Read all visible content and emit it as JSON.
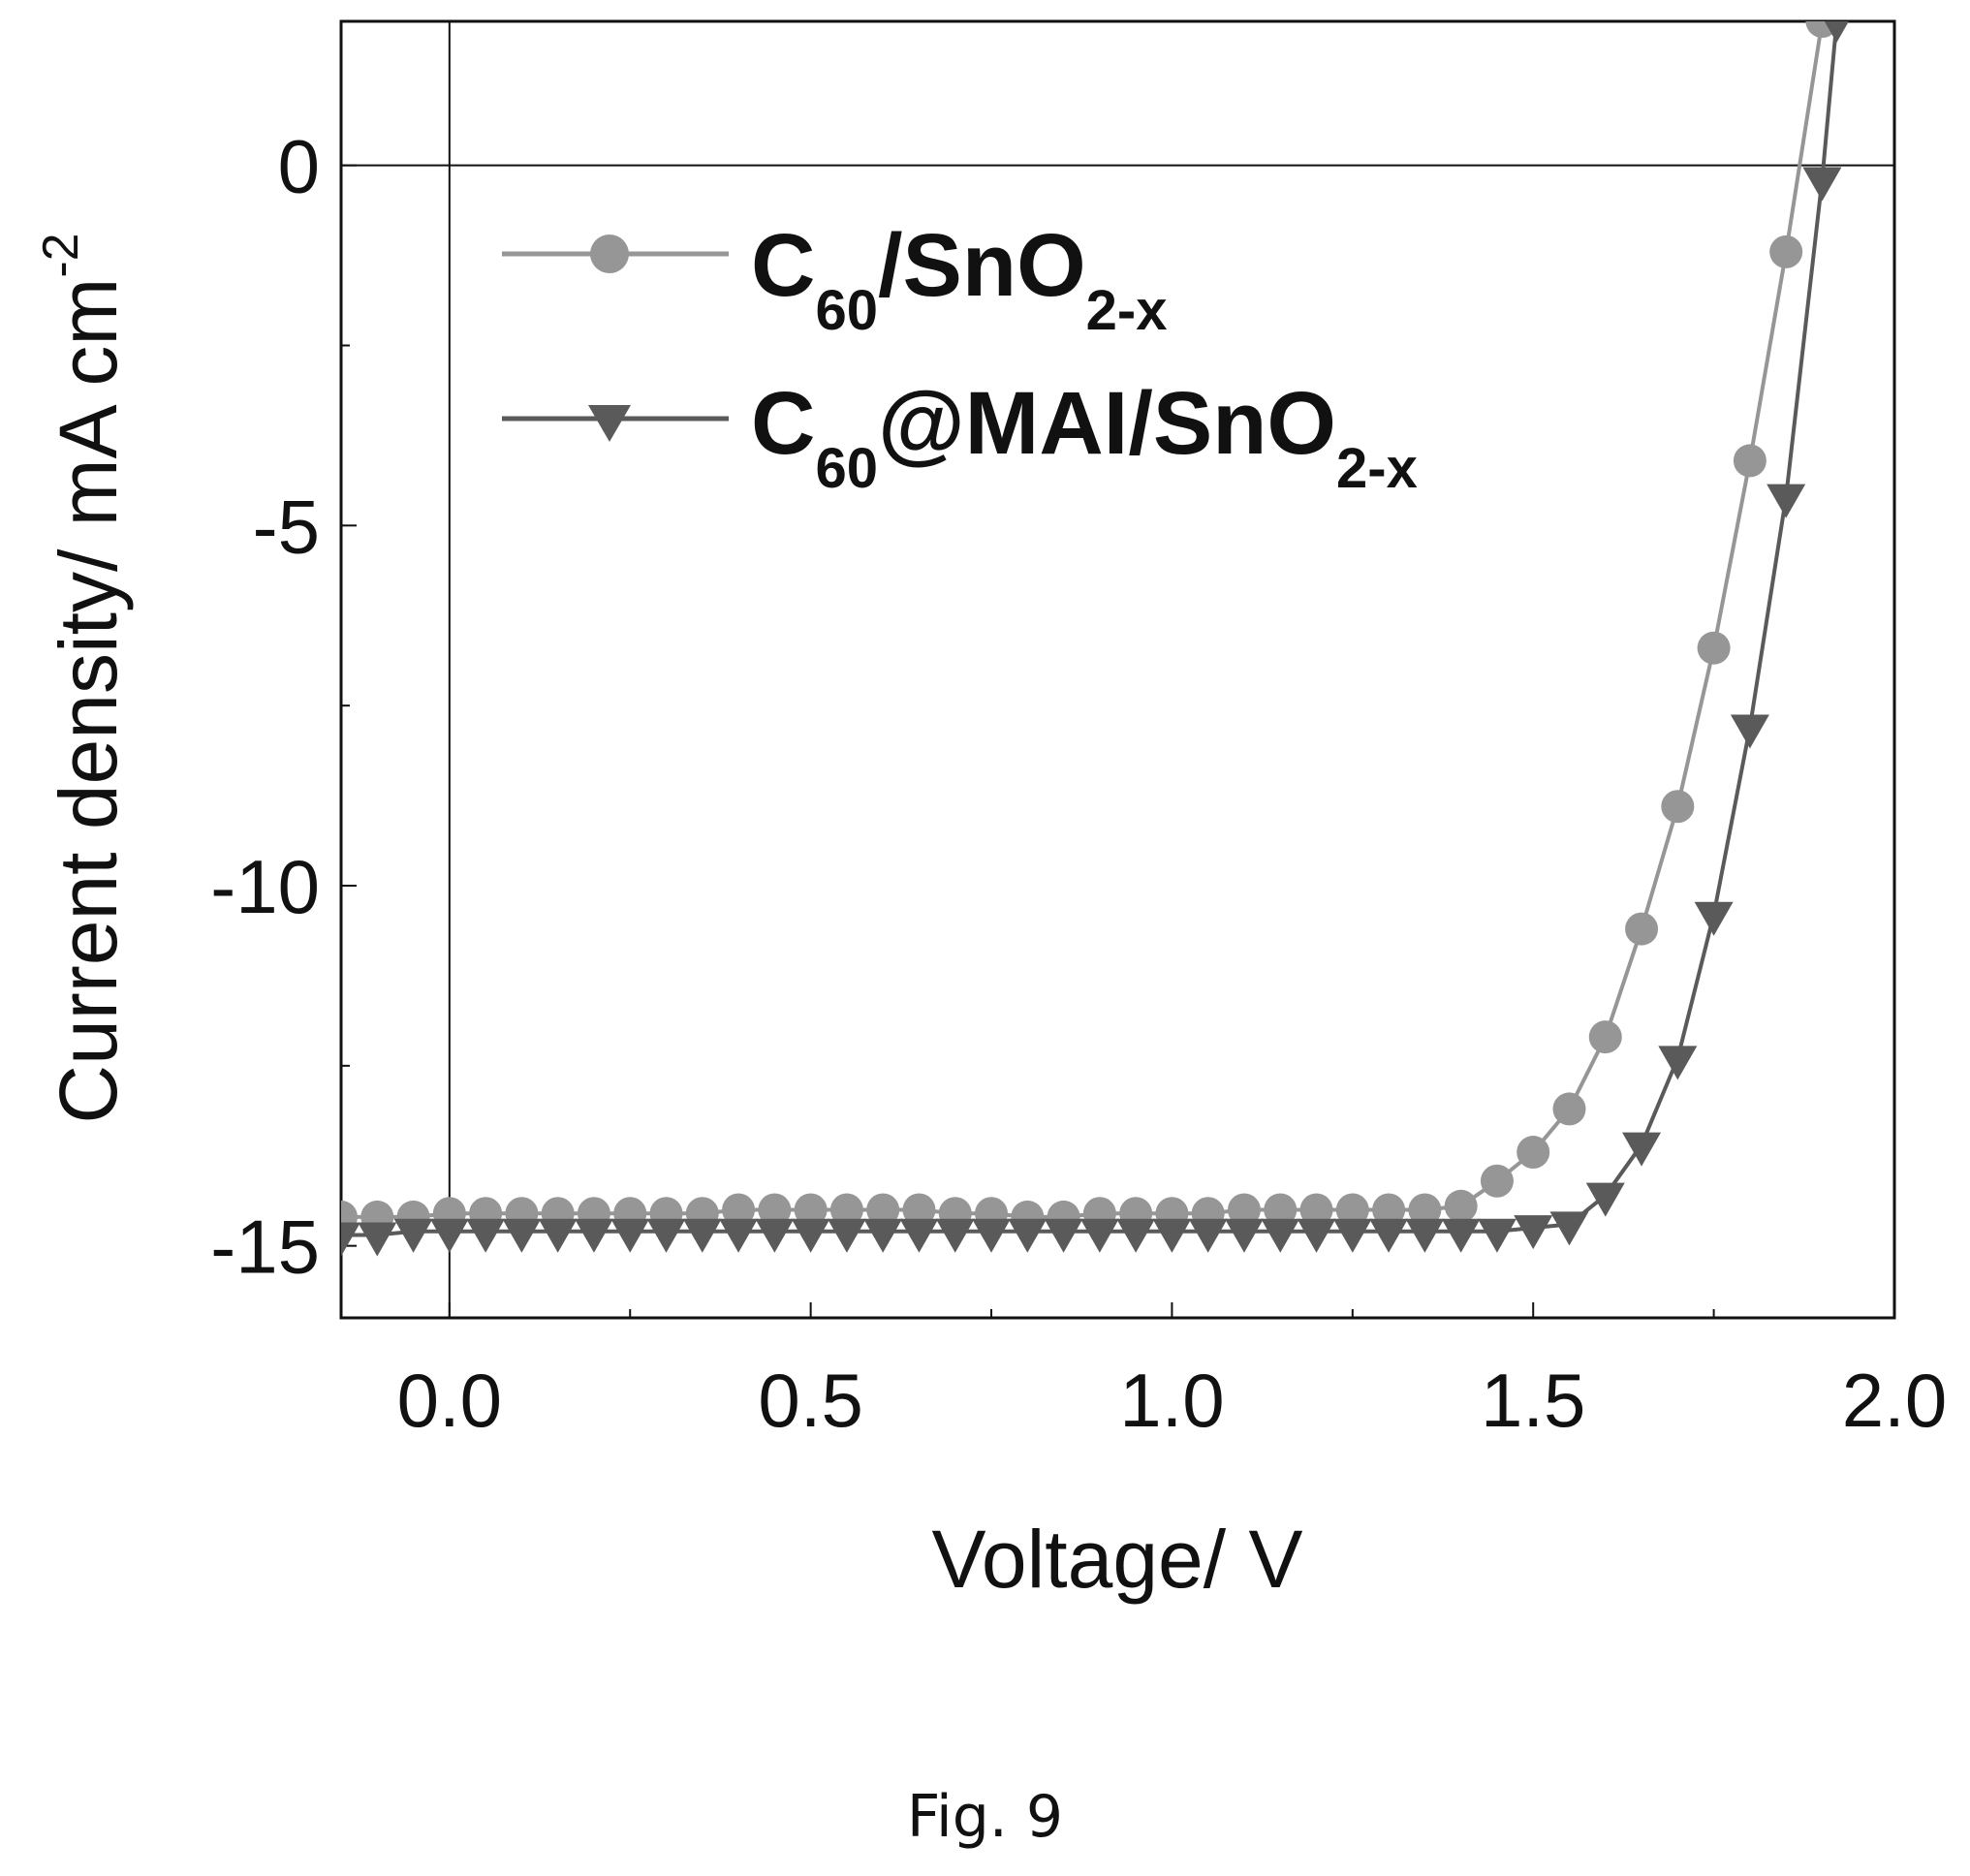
{
  "figure_caption": "Fig. 9",
  "chart_data": {
    "type": "line",
    "xlabel": "Voltage/ V",
    "ylabel_main": "Current density/ mA cm",
    "ylabel_sup": "-2",
    "xlim": [
      -0.15,
      2.0
    ],
    "ylim": [
      -16,
      2
    ],
    "x_ticks": [
      0.0,
      0.5,
      1.0,
      1.5,
      2.0
    ],
    "x_tick_labels": [
      "0.0",
      "0.5",
      "1.0",
      "1.5",
      "2.0"
    ],
    "y_ticks": [
      0,
      -5,
      -10,
      -15
    ],
    "y_tick_labels": [
      "0",
      "-5",
      "-10",
      "-15"
    ],
    "grid": false,
    "legend_position": "top-left",
    "series": [
      {
        "name_main": "C",
        "name_sub1": "60",
        "name_mid": "/SnO",
        "name_sub2": "2-x",
        "marker": "circle",
        "color": "#969696",
        "x": [
          -0.15,
          -0.1,
          -0.05,
          0.0,
          0.05,
          0.1,
          0.15,
          0.2,
          0.25,
          0.3,
          0.35,
          0.4,
          0.45,
          0.5,
          0.55,
          0.6,
          0.65,
          0.7,
          0.75,
          0.8,
          0.85,
          0.9,
          0.95,
          1.0,
          1.05,
          1.1,
          1.15,
          1.2,
          1.25,
          1.3,
          1.35,
          1.4,
          1.45,
          1.5,
          1.55,
          1.6,
          1.65,
          1.7,
          1.75,
          1.8,
          1.85,
          1.9
        ],
        "y": [
          -14.6,
          -14.6,
          -14.6,
          -14.55,
          -14.55,
          -14.55,
          -14.55,
          -14.55,
          -14.55,
          -14.55,
          -14.55,
          -14.5,
          -14.5,
          -14.5,
          -14.5,
          -14.5,
          -14.5,
          -14.55,
          -14.55,
          -14.6,
          -14.6,
          -14.55,
          -14.55,
          -14.55,
          -14.55,
          -14.5,
          -14.5,
          -14.5,
          -14.5,
          -14.5,
          -14.5,
          -14.45,
          -14.1,
          -13.7,
          -13.1,
          -12.1,
          -10.6,
          -8.9,
          -6.7,
          -4.1,
          -1.2,
          2.0
        ]
      },
      {
        "name_main": "C",
        "name_sub1": "60",
        "name_mid": "@MAI/SnO",
        "name_sub2": "2-x",
        "marker": "triangle-down",
        "color": "#5a5a5a",
        "x": [
          -0.15,
          -0.1,
          -0.05,
          0.0,
          0.05,
          0.1,
          0.15,
          0.2,
          0.25,
          0.3,
          0.35,
          0.4,
          0.45,
          0.5,
          0.55,
          0.6,
          0.65,
          0.7,
          0.75,
          0.8,
          0.85,
          0.9,
          0.95,
          1.0,
          1.05,
          1.1,
          1.15,
          1.2,
          1.25,
          1.3,
          1.35,
          1.4,
          1.45,
          1.5,
          1.55,
          1.6,
          1.65,
          1.7,
          1.75,
          1.8,
          1.85,
          1.9,
          1.92
        ],
        "y": [
          -14.85,
          -14.85,
          -14.8,
          -14.8,
          -14.8,
          -14.8,
          -14.8,
          -14.8,
          -14.8,
          -14.8,
          -14.8,
          -14.8,
          -14.8,
          -14.8,
          -14.8,
          -14.8,
          -14.8,
          -14.8,
          -14.8,
          -14.8,
          -14.8,
          -14.8,
          -14.8,
          -14.8,
          -14.8,
          -14.8,
          -14.8,
          -14.8,
          -14.8,
          -14.8,
          -14.8,
          -14.8,
          -14.8,
          -14.75,
          -14.7,
          -14.3,
          -13.6,
          -12.4,
          -10.4,
          -7.8,
          -4.6,
          -0.2,
          2.0
        ]
      }
    ]
  }
}
